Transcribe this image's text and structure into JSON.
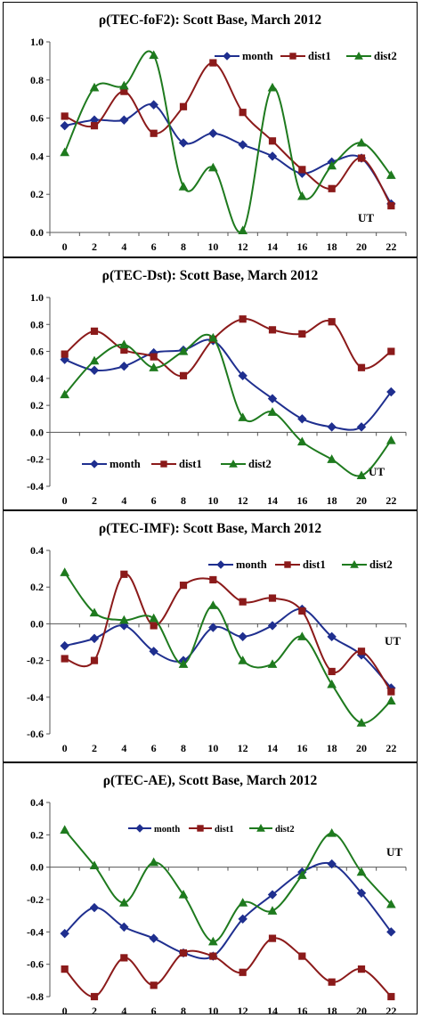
{
  "chart_data": [
    {
      "type": "line",
      "title": "ρ(TEC-foF2): Scott Base, March 2012",
      "xlabel": "UT",
      "ylabel": "",
      "x": [
        0,
        2,
        4,
        6,
        8,
        10,
        12,
        14,
        16,
        18,
        20,
        22
      ],
      "ylim": [
        0,
        1.0
      ],
      "yticks": [
        "0.0",
        "0.2",
        "0.4",
        "0.6",
        "0.8",
        "1.0"
      ],
      "grid": false,
      "legend": "top-right",
      "series": [
        {
          "name": "month",
          "color": "#1f2f8f",
          "marker": "diamond",
          "values": [
            0.56,
            0.59,
            0.59,
            0.67,
            0.47,
            0.52,
            0.46,
            0.4,
            0.31,
            0.37,
            0.39,
            0.15
          ]
        },
        {
          "name": "dist1",
          "color": "#8b1a1a",
          "marker": "square",
          "values": [
            0.61,
            0.56,
            0.74,
            0.52,
            0.66,
            0.89,
            0.63,
            0.48,
            0.33,
            0.23,
            0.39,
            0.14
          ]
        },
        {
          "name": "dist2",
          "color": "#1e7a1e",
          "marker": "triangle",
          "values": [
            0.42,
            0.76,
            0.77,
            0.93,
            0.24,
            0.34,
            0.01,
            0.76,
            0.19,
            0.35,
            0.47,
            0.3
          ]
        }
      ]
    },
    {
      "type": "line",
      "title": "ρ(TEC-Dst): Scott Base, March 2012",
      "xlabel": "UT",
      "ylabel": "",
      "x": [
        0,
        2,
        4,
        6,
        8,
        10,
        12,
        14,
        16,
        18,
        20,
        22
      ],
      "ylim": [
        -0.4,
        1.0
      ],
      "yticks": [
        "-0.4",
        "-0.2",
        "0.0",
        "0.2",
        "0.4",
        "0.6",
        "0.8",
        "1.0"
      ],
      "grid": false,
      "legend": "bottom-left",
      "series": [
        {
          "name": "month",
          "color": "#1f2f8f",
          "marker": "diamond",
          "values": [
            0.54,
            0.46,
            0.49,
            0.59,
            0.61,
            0.68,
            0.42,
            0.25,
            0.1,
            0.04,
            0.04,
            0.3
          ]
        },
        {
          "name": "dist1",
          "color": "#8b1a1a",
          "marker": "square",
          "values": [
            0.58,
            0.75,
            0.61,
            0.56,
            0.42,
            0.69,
            0.84,
            0.76,
            0.73,
            0.82,
            0.48,
            0.6
          ]
        },
        {
          "name": "dist2",
          "color": "#1e7a1e",
          "marker": "triangle",
          "values": [
            0.28,
            0.53,
            0.65,
            0.48,
            0.6,
            0.7,
            0.11,
            0.15,
            -0.07,
            -0.2,
            -0.32,
            -0.06
          ]
        }
      ]
    },
    {
      "type": "line",
      "title": "ρ(TEC-IMF): Scott Base, March 2012",
      "xlabel": "UT",
      "ylabel": "",
      "x": [
        0,
        2,
        4,
        6,
        8,
        10,
        12,
        14,
        16,
        18,
        20,
        22
      ],
      "ylim": [
        -0.6,
        0.4
      ],
      "yticks": [
        "-0.6",
        "-0.4",
        "-0.2",
        "0.0",
        "0.2",
        "0.4"
      ],
      "grid": false,
      "legend": "top-right",
      "series": [
        {
          "name": "month",
          "color": "#1f2f8f",
          "marker": "diamond",
          "values": [
            -0.12,
            -0.08,
            -0.01,
            -0.15,
            -0.2,
            -0.02,
            -0.07,
            -0.01,
            0.08,
            -0.07,
            -0.17,
            -0.35
          ]
        },
        {
          "name": "dist1",
          "color": "#8b1a1a",
          "marker": "square",
          "values": [
            -0.19,
            -0.2,
            0.27,
            -0.01,
            0.21,
            0.24,
            0.12,
            0.14,
            0.07,
            -0.26,
            -0.15,
            -0.37
          ]
        },
        {
          "name": "dist2",
          "color": "#1e7a1e",
          "marker": "triangle",
          "values": [
            0.28,
            0.06,
            0.02,
            0.03,
            -0.22,
            0.1,
            -0.2,
            -0.22,
            -0.07,
            -0.33,
            -0.54,
            -0.42
          ]
        }
      ]
    },
    {
      "type": "line",
      "title": "ρ(TEC-AE), Scott Base, March 2012",
      "xlabel": "UT",
      "ylabel": "",
      "x": [
        0,
        2,
        4,
        6,
        8,
        10,
        12,
        14,
        16,
        18,
        20,
        22
      ],
      "ylim": [
        -0.8,
        0.4
      ],
      "yticks": [
        "-0.8",
        "-0.6",
        "-0.4",
        "-0.2",
        "0.0",
        "0.2",
        "0.4"
      ],
      "grid": false,
      "legend": "top-center",
      "series": [
        {
          "name": "month",
          "color": "#1f2f8f",
          "marker": "diamond",
          "values": [
            -0.41,
            -0.25,
            -0.37,
            -0.44,
            -0.53,
            -0.55,
            -0.32,
            -0.17,
            -0.03,
            0.02,
            -0.16,
            -0.4
          ]
        },
        {
          "name": "dist1",
          "color": "#8b1a1a",
          "marker": "square",
          "values": [
            -0.63,
            -0.8,
            -0.56,
            -0.73,
            -0.53,
            -0.55,
            -0.65,
            -0.44,
            -0.55,
            -0.71,
            -0.63,
            -0.8
          ]
        },
        {
          "name": "dist2",
          "color": "#1e7a1e",
          "marker": "triangle",
          "values": [
            0.23,
            0.01,
            -0.22,
            0.03,
            -0.17,
            -0.46,
            -0.22,
            -0.27,
            -0.05,
            0.21,
            -0.03,
            -0.23
          ]
        }
      ]
    }
  ]
}
